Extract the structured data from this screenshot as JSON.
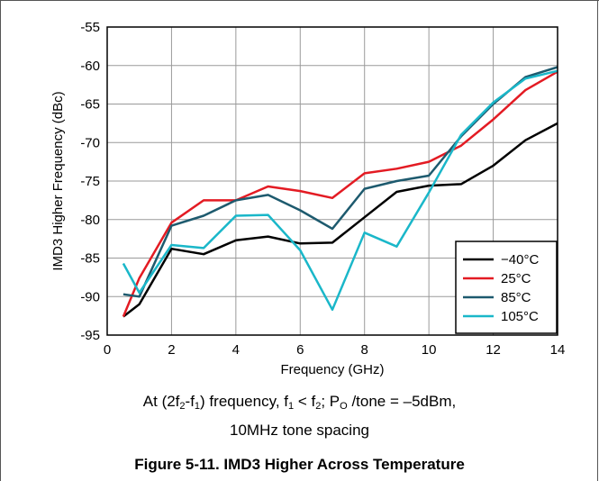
{
  "chart_data": {
    "type": "line",
    "xlabel": "Frequency (GHz)",
    "ylabel": "IMD3 Higher Frequency (dBc)",
    "xlim": [
      0,
      14
    ],
    "ylim": [
      -95,
      -55
    ],
    "xticks": [
      "0",
      "2",
      "4",
      "6",
      "8",
      "10",
      "12",
      "14"
    ],
    "yticks": [
      "-55",
      "-60",
      "-65",
      "-70",
      "-75",
      "-80",
      "-85",
      "-90",
      "-95"
    ],
    "grid": true,
    "legend_position": "bottom-right",
    "series": [
      {
        "name": "−40°C",
        "color": "#000000",
        "x": [
          0.5,
          1,
          2,
          3,
          4,
          5,
          6,
          7,
          8,
          9,
          10,
          11,
          12,
          13,
          14
        ],
        "y": [
          -92.6,
          -91.0,
          -83.8,
          -84.5,
          -82.7,
          -82.2,
          -83.1,
          -83.0,
          -79.7,
          -76.4,
          -75.6,
          -75.4,
          -73.0,
          -69.7,
          -67.5
        ]
      },
      {
        "name": "25°C",
        "color": "#e31b23",
        "x": [
          0.5,
          1,
          2,
          3,
          4,
          5,
          6,
          7,
          8,
          9,
          10,
          11,
          12,
          13,
          14
        ],
        "y": [
          -92.6,
          -87.6,
          -80.4,
          -77.5,
          -77.5,
          -75.7,
          -76.3,
          -77.2,
          -74.0,
          -73.4,
          -72.5,
          -70.4,
          -67.0,
          -63.2,
          -60.8
        ]
      },
      {
        "name": "85°C",
        "color": "#1d5a6e",
        "x": [
          0.5,
          1,
          2,
          3,
          4,
          5,
          6,
          7,
          8,
          9,
          10,
          11,
          12,
          13,
          14
        ],
        "y": [
          -89.7,
          -90.0,
          -80.8,
          -79.5,
          -77.5,
          -76.8,
          -78.8,
          -81.2,
          -76.0,
          -75.0,
          -74.3,
          -69.2,
          -65.0,
          -61.5,
          -60.2
        ]
      },
      {
        "name": "105°C",
        "color": "#1ab7c9",
        "x": [
          0.5,
          1,
          2,
          3,
          4,
          5,
          6,
          7,
          8,
          9,
          10,
          11,
          12,
          13,
          14
        ],
        "y": [
          -85.7,
          -89.5,
          -83.3,
          -83.7,
          -79.5,
          -79.4,
          -84.0,
          -91.7,
          -81.7,
          -83.5,
          -76.5,
          -69.0,
          -64.8,
          -61.7,
          -60.7
        ]
      }
    ]
  },
  "note": {
    "prefix": "At (2f",
    "sub1": "2",
    "mid1": "-f",
    "sub2": "1",
    "mid2": ") frequency, f",
    "sub3": "1",
    "mid3": " < f",
    "sub4": "2",
    "mid4": "; P",
    "sub5": "O",
    "suffix": " /tone = –5dBm,",
    "line2": "10MHz tone spacing"
  },
  "figure_caption": "Figure 5-11. IMD3 Higher Across Temperature"
}
